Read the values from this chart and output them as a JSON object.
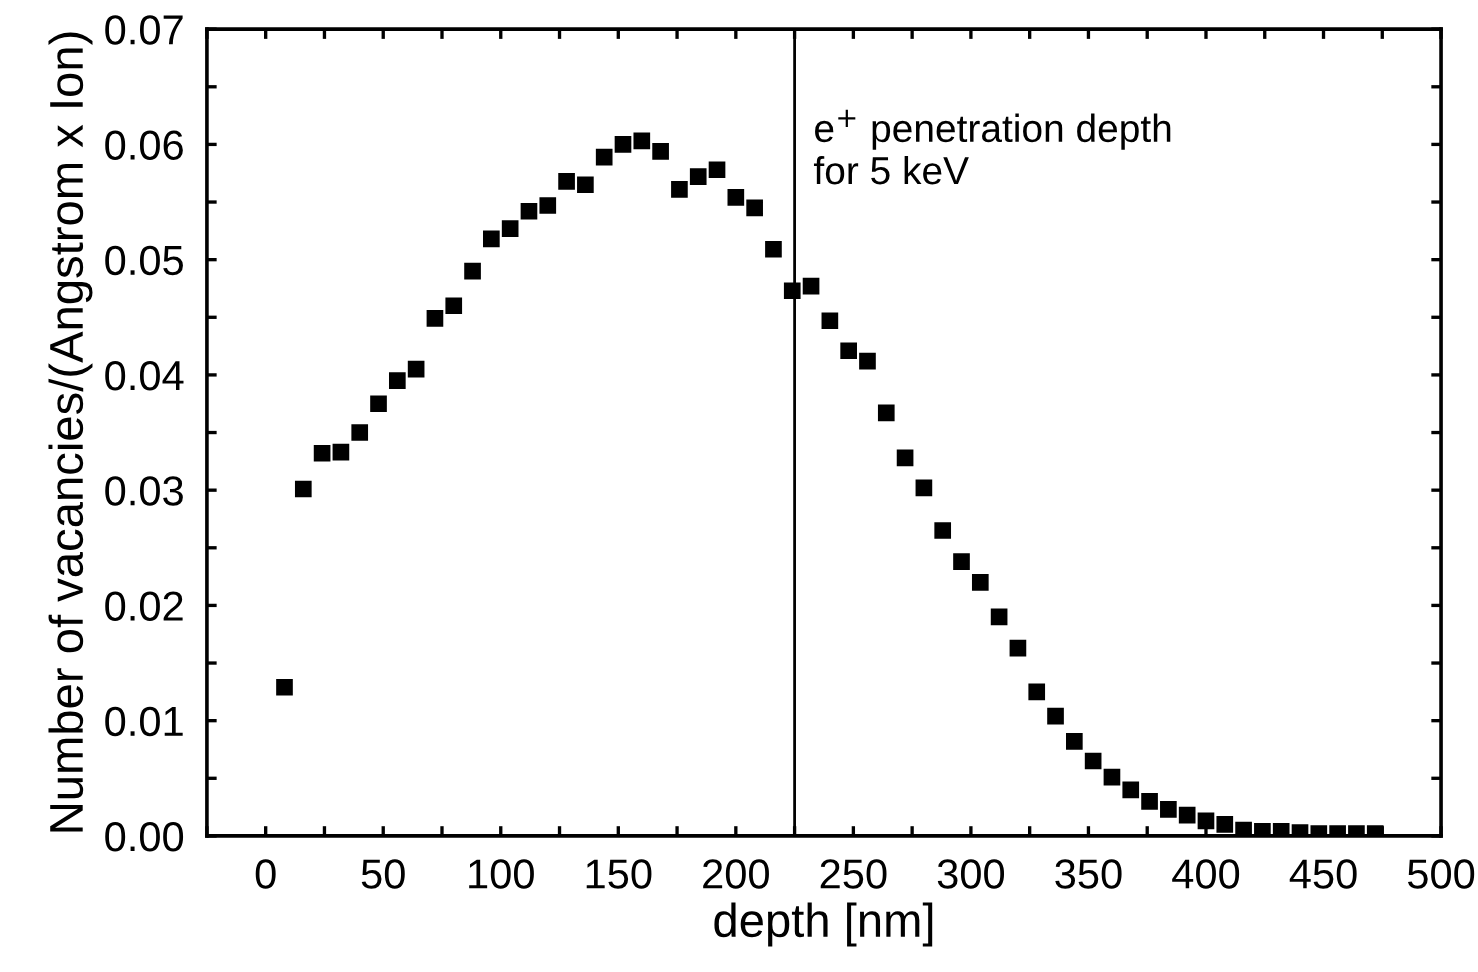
{
  "chart_data": {
    "type": "scatter",
    "xlabel": "depth [nm]",
    "ylabel": "Number of vacancies/(Angstrom x Ion)",
    "marker": "square",
    "grid": false,
    "legend": false,
    "series": [
      {
        "color": "#000000",
        "x": [
          8,
          16,
          24,
          32,
          40,
          48,
          56,
          64,
          72,
          80,
          88,
          96,
          104,
          112,
          120,
          128,
          136,
          144,
          152,
          160,
          168,
          176,
          184,
          192,
          200,
          208,
          216,
          224,
          232,
          240,
          248,
          256,
          264,
          272,
          280,
          288,
          296,
          304,
          312,
          320,
          328,
          336,
          344,
          352,
          360,
          368,
          376,
          384,
          392,
          400,
          408,
          416,
          424,
          432,
          440,
          448,
          456,
          464,
          472
        ],
        "values": [
          0.0129,
          0.0301,
          0.0332,
          0.0333,
          0.035,
          0.0375,
          0.0395,
          0.0405,
          0.0449,
          0.046,
          0.049,
          0.0518,
          0.0527,
          0.0542,
          0.0547,
          0.0568,
          0.0565,
          0.0589,
          0.06,
          0.0603,
          0.0594,
          0.0561,
          0.0572,
          0.0578,
          0.0554,
          0.0545,
          0.0509,
          0.0473,
          0.0477,
          0.0447,
          0.0421,
          0.0412,
          0.0367,
          0.0328,
          0.0302,
          0.0265,
          0.0238,
          0.022,
          0.019,
          0.0163,
          0.0125,
          0.0104,
          0.0082,
          0.0065,
          0.0051,
          0.004,
          0.003,
          0.0023,
          0.0018,
          0.0013,
          0.001,
          0.0005,
          0.0004,
          0.0004,
          0.0003,
          0.0002,
          0.0002,
          0.0002,
          0.0002
        ]
      }
    ],
    "xlim": [
      -25,
      500
    ],
    "xticks": [
      {
        "value": -25,
        "label": null
      },
      0,
      {
        "value": 25,
        "label": null
      },
      50,
      {
        "value": 75,
        "label": null
      },
      100,
      {
        "value": 125,
        "label": null
      },
      150,
      {
        "value": 175,
        "label": null
      },
      200,
      {
        "value": 225,
        "label": null
      },
      250,
      {
        "value": 275,
        "label": null
      },
      300,
      {
        "value": 325,
        "label": null
      },
      350,
      {
        "value": 375,
        "label": null
      },
      400,
      {
        "value": 425,
        "label": null
      },
      450,
      {
        "value": 475,
        "label": null
      },
      500
    ],
    "ylim": [
      0,
      0.07
    ],
    "yticks": [
      {
        "value": 0,
        "label": "0.00"
      },
      {
        "value": 0.005,
        "label": null
      },
      {
        "value": 0.01,
        "label": "0.01"
      },
      {
        "value": 0.015,
        "label": null
      },
      {
        "value": 0.02,
        "label": "0.02"
      },
      {
        "value": 0.025,
        "label": null
      },
      {
        "value": 0.03,
        "label": "0.03"
      },
      {
        "value": 0.035,
        "label": null
      },
      {
        "value": 0.04,
        "label": "0.04"
      },
      {
        "value": 0.045,
        "label": null
      },
      {
        "value": 0.05,
        "label": "0.05"
      },
      {
        "value": 0.055,
        "label": null
      },
      {
        "value": 0.06,
        "label": "0.06"
      },
      {
        "value": 0.065,
        "label": null
      },
      {
        "value": 0.07,
        "label": "0.07"
      }
    ],
    "ref_lines": [
      {
        "axis": "x",
        "value": 225,
        "label": "e$^{+}$ penetration depth\nfor 5 keV",
        "color": "#000000"
      }
    ]
  }
}
